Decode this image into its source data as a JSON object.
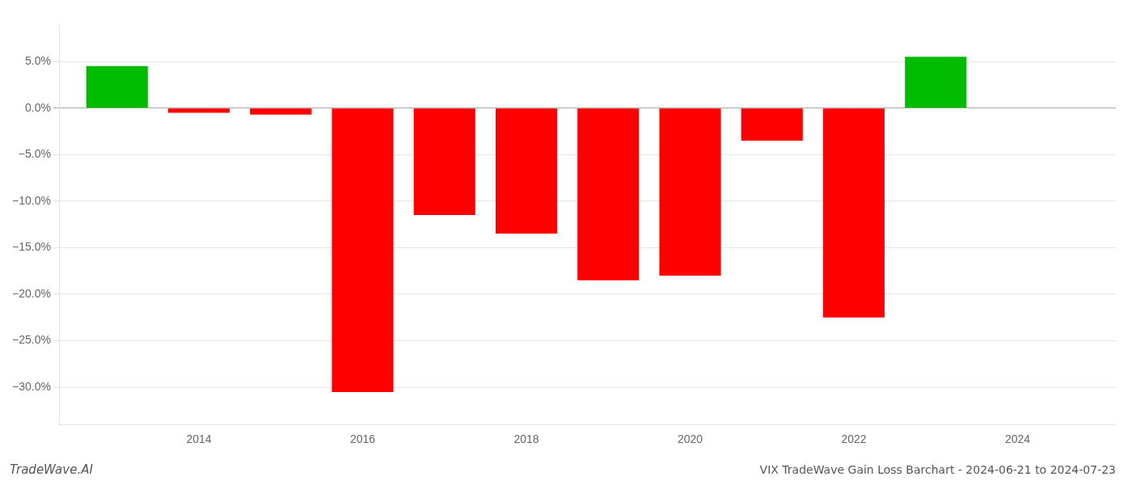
{
  "chart_data": {
    "type": "bar",
    "title": "VIX TradeWave Gain Loss Barchart - 2024-06-21 to 2024-07-23",
    "annotations": [
      "TradeWave.AI"
    ],
    "x": [
      2013,
      2014,
      2015,
      2016,
      2017,
      2018,
      2019,
      2020,
      2021,
      2022,
      2023
    ],
    "values": [
      4.5,
      -0.5,
      -0.7,
      -30.5,
      -11.5,
      -13.5,
      -18.5,
      -18.0,
      -3.5,
      -22.5,
      5.5
    ],
    "colors": [
      "#00bb00",
      "#ff0000",
      "#ff0000",
      "#ff0000",
      "#ff0000",
      "#ff0000",
      "#ff0000",
      "#ff0000",
      "#ff0000",
      "#ff0000",
      "#00bb00"
    ],
    "xlim": [
      2012.3,
      2025.2
    ],
    "xticks": [
      2014,
      2016,
      2018,
      2020,
      2022,
      2024
    ],
    "ylim": [
      -34,
      9
    ],
    "yticks": [
      {
        "value": 5.0,
        "label": "5.0%"
      },
      {
        "value": 0.0,
        "label": "0.0%"
      },
      {
        "value": -5.0,
        "label": "−5.0%"
      },
      {
        "value": -10.0,
        "label": "−10.0%"
      },
      {
        "value": -15.0,
        "label": "−15.0%"
      },
      {
        "value": -20.0,
        "label": "−20.0%"
      },
      {
        "value": -25.0,
        "label": "−25.0%"
      },
      {
        "value": -30.0,
        "label": "−30.0%"
      }
    ],
    "grid": "y"
  }
}
